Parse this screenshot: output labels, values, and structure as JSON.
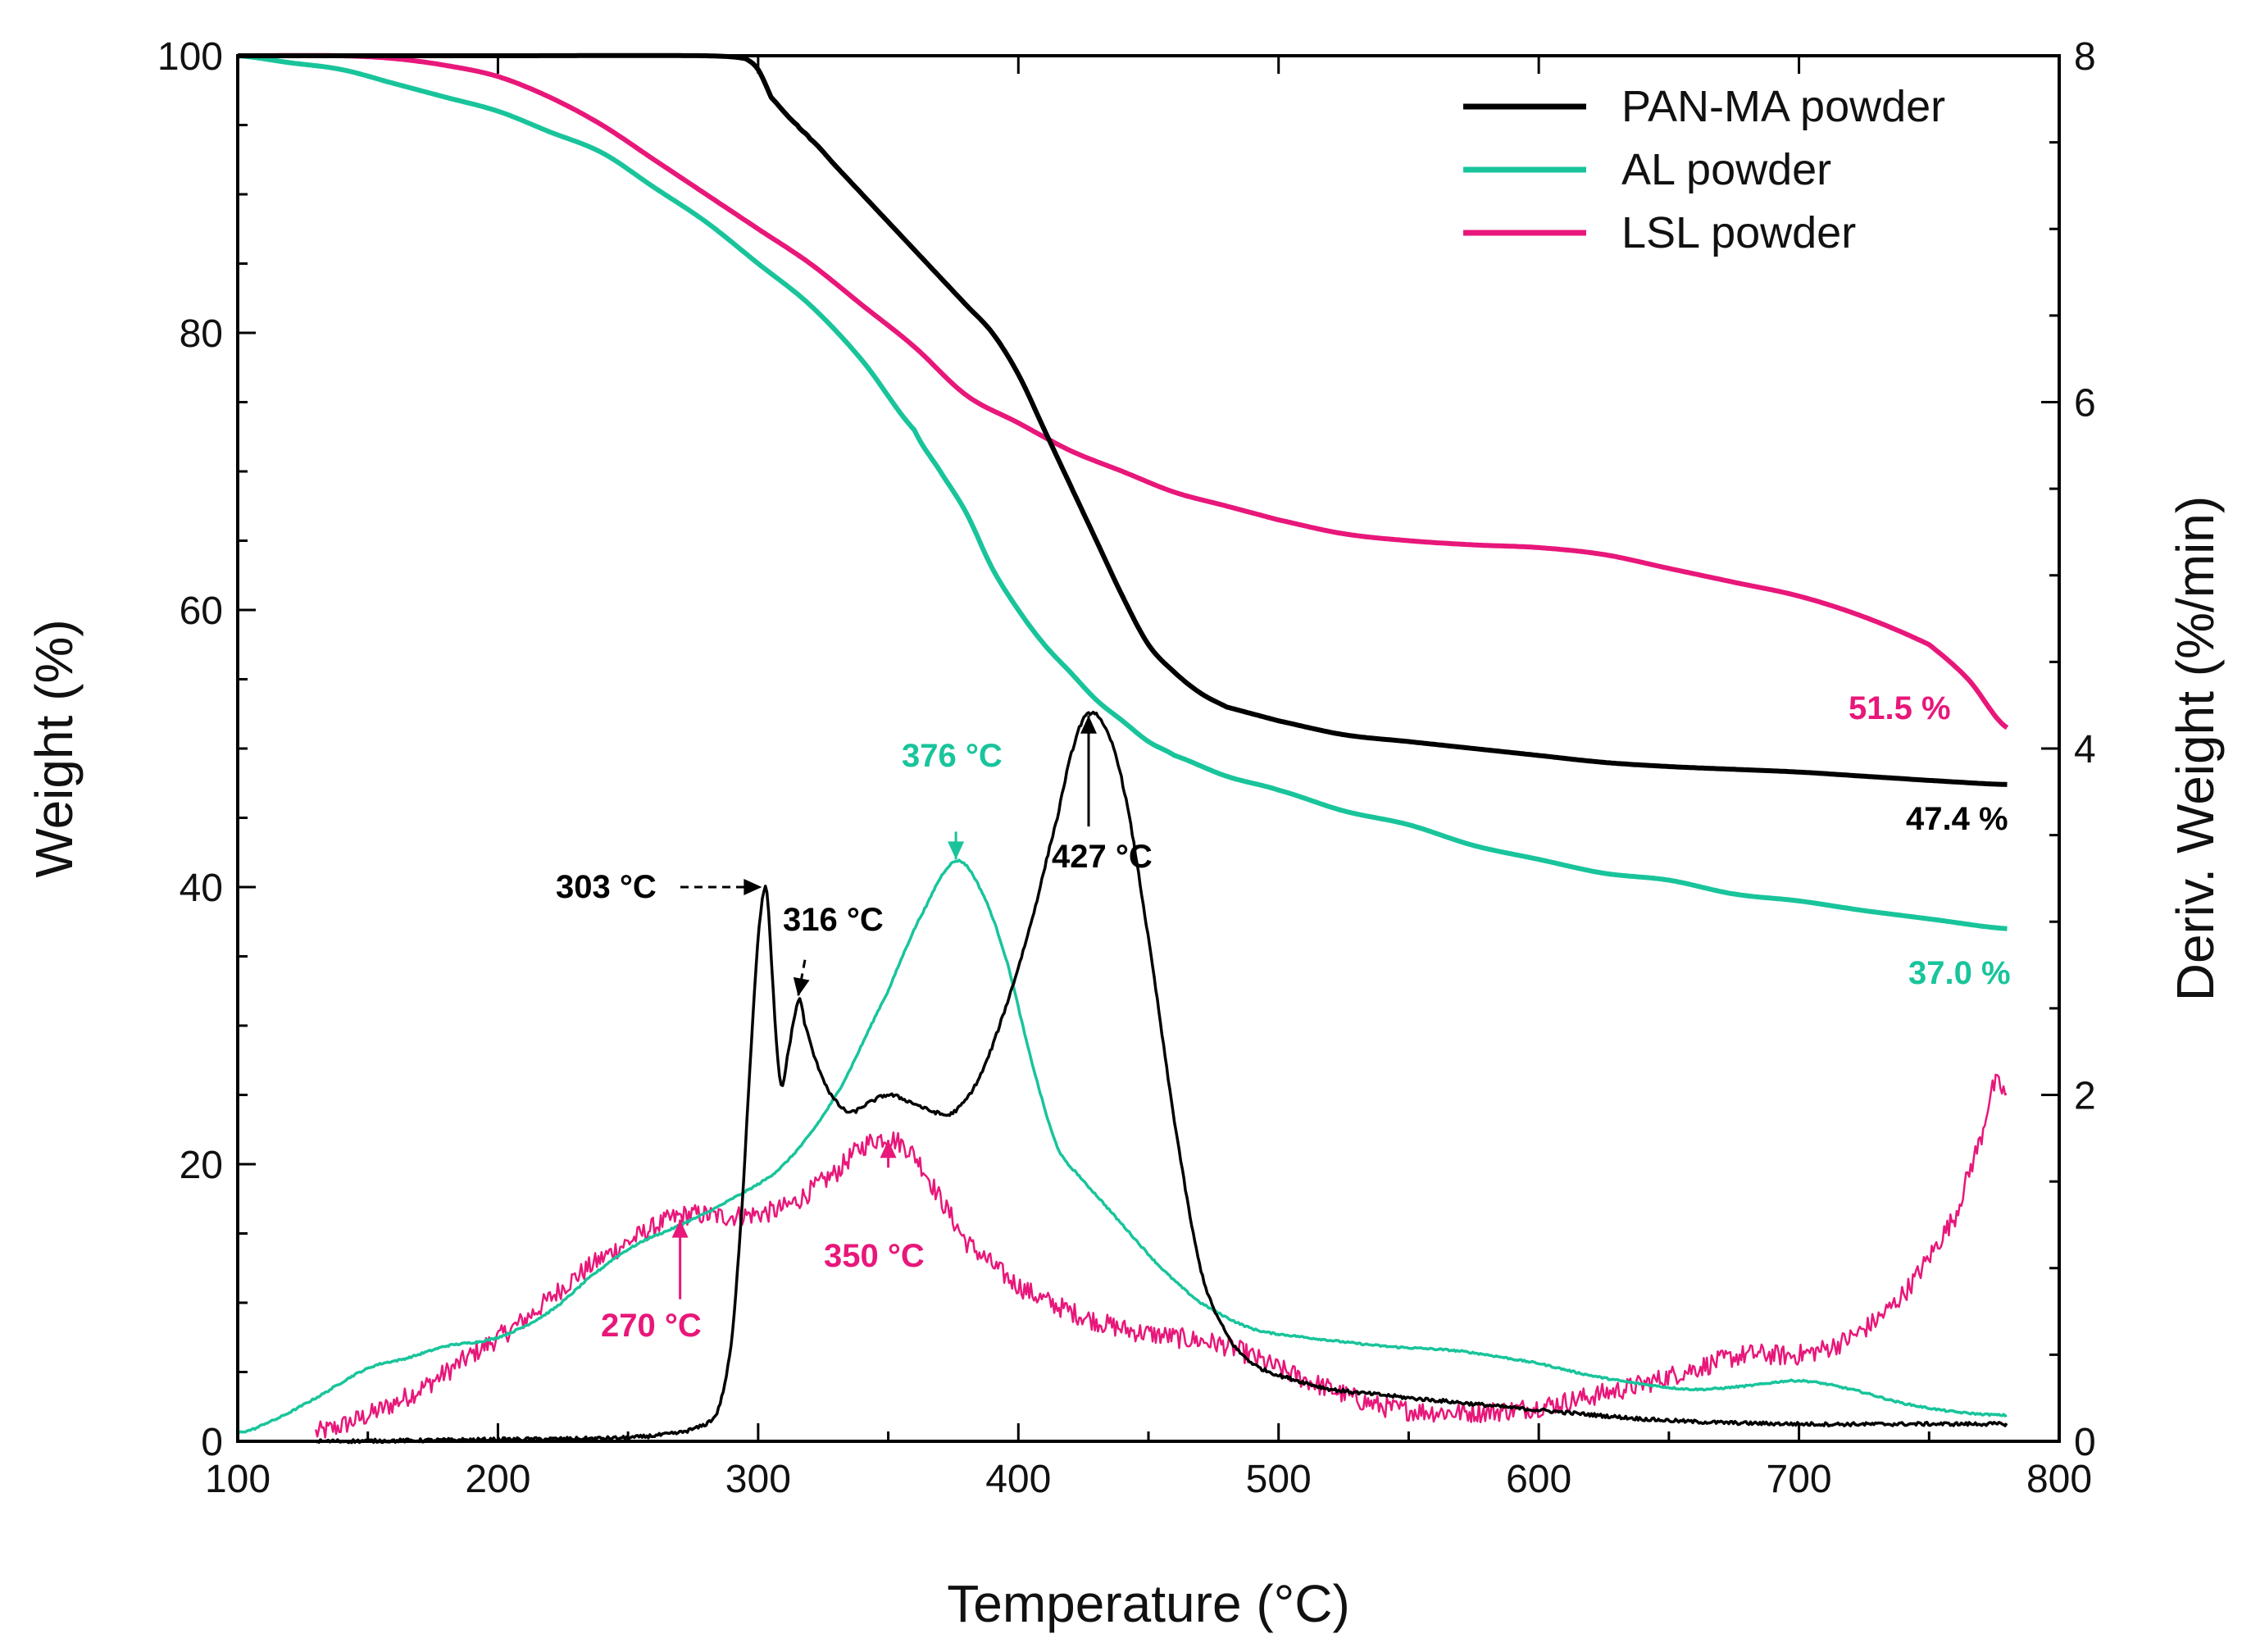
{
  "chart_data": {
    "type": "line",
    "title": "",
    "xlabel": "Temperature (°C)",
    "ylabel": "Weight (%)",
    "y2label": "Deriv. Weight (%/min)",
    "xlim": [
      100,
      800
    ],
    "ylim": [
      0,
      100
    ],
    "y2lim": [
      0,
      8
    ],
    "xticks": [
      100,
      200,
      300,
      400,
      500,
      600,
      700,
      800
    ],
    "yticks": [
      0,
      20,
      40,
      60,
      80,
      100
    ],
    "y2ticks": [
      0,
      2,
      4,
      6,
      8
    ],
    "legend_position": "top-right",
    "series": [
      {
        "name": "PAN-MA powder",
        "color": "#000000",
        "axis": "left",
        "points": [
          [
            100,
            100
          ],
          [
            200,
            100
          ],
          [
            280,
            100
          ],
          [
            295,
            99.8
          ],
          [
            300,
            99
          ],
          [
            305,
            97
          ],
          [
            315,
            95
          ],
          [
            320,
            94
          ],
          [
            330,
            92
          ],
          [
            340,
            90
          ],
          [
            350,
            88
          ],
          [
            360,
            86
          ],
          [
            370,
            84
          ],
          [
            380,
            82
          ],
          [
            390,
            80
          ],
          [
            400,
            77
          ],
          [
            410,
            73
          ],
          [
            420,
            69
          ],
          [
            430,
            65
          ],
          [
            440,
            61
          ],
          [
            450,
            57.5
          ],
          [
            460,
            55.5
          ],
          [
            470,
            54
          ],
          [
            480,
            53
          ],
          [
            500,
            52
          ],
          [
            525,
            51
          ],
          [
            550,
            50.5
          ],
          [
            575,
            50
          ],
          [
            600,
            49.5
          ],
          [
            625,
            49
          ],
          [
            650,
            48.7
          ],
          [
            675,
            48.5
          ],
          [
            700,
            48.3
          ],
          [
            725,
            48
          ],
          [
            750,
            47.7
          ],
          [
            780,
            47.4
          ]
        ]
      },
      {
        "name": "AL powder",
        "color": "#19c49b",
        "axis": "left",
        "points": [
          [
            100,
            100
          ],
          [
            120,
            99.5
          ],
          [
            140,
            99
          ],
          [
            160,
            98
          ],
          [
            180,
            97
          ],
          [
            200,
            96
          ],
          [
            220,
            94.5
          ],
          [
            240,
            93
          ],
          [
            260,
            90.5
          ],
          [
            280,
            88
          ],
          [
            300,
            85
          ],
          [
            320,
            82
          ],
          [
            340,
            78
          ],
          [
            360,
            73
          ],
          [
            370,
            70
          ],
          [
            380,
            67
          ],
          [
            390,
            63
          ],
          [
            400,
            60
          ],
          [
            410,
            57.5
          ],
          [
            420,
            55.5
          ],
          [
            430,
            53.5
          ],
          [
            440,
            52
          ],
          [
            450,
            50.5
          ],
          [
            460,
            49.5
          ],
          [
            480,
            48
          ],
          [
            500,
            47
          ],
          [
            525,
            45.5
          ],
          [
            550,
            44.5
          ],
          [
            575,
            43
          ],
          [
            600,
            42
          ],
          [
            625,
            41
          ],
          [
            650,
            40.5
          ],
          [
            675,
            39.5
          ],
          [
            700,
            39
          ],
          [
            725,
            38.3
          ],
          [
            750,
            37.7
          ],
          [
            780,
            37
          ]
        ]
      },
      {
        "name": "LSL powder",
        "color": "#e8177a",
        "axis": "left",
        "points": [
          [
            100,
            100
          ],
          [
            140,
            100
          ],
          [
            160,
            99.8
          ],
          [
            180,
            99.3
          ],
          [
            200,
            98.5
          ],
          [
            220,
            97
          ],
          [
            240,
            95
          ],
          [
            260,
            92.5
          ],
          [
            280,
            90
          ],
          [
            300,
            87.5
          ],
          [
            320,
            85
          ],
          [
            340,
            82
          ],
          [
            360,
            79
          ],
          [
            380,
            75.5
          ],
          [
            400,
            73.5
          ],
          [
            420,
            71.5
          ],
          [
            440,
            70
          ],
          [
            460,
            68.5
          ],
          [
            480,
            67.5
          ],
          [
            500,
            66.5
          ],
          [
            525,
            65.5
          ],
          [
            550,
            65
          ],
          [
            575,
            64.7
          ],
          [
            600,
            64.5
          ],
          [
            625,
            64
          ],
          [
            650,
            63
          ],
          [
            675,
            62
          ],
          [
            700,
            61
          ],
          [
            725,
            59.5
          ],
          [
            750,
            57.5
          ],
          [
            765,
            55
          ],
          [
            780,
            51.5
          ]
        ]
      },
      {
        "name": "PAN-MA powder DTG",
        "color": "#000000",
        "axis": "right",
        "noise": 0.01,
        "points": [
          [
            130,
            0
          ],
          [
            200,
            0.01
          ],
          [
            250,
            0.02
          ],
          [
            270,
            0.05
          ],
          [
            280,
            0.1
          ],
          [
            285,
            0.2
          ],
          [
            290,
            0.6
          ],
          [
            294,
            1.4
          ],
          [
            297,
            2.2
          ],
          [
            300,
            2.9
          ],
          [
            303,
            3.2
          ],
          [
            305,
            2.8
          ],
          [
            307,
            2.3
          ],
          [
            309,
            2.05
          ],
          [
            311,
            2.2
          ],
          [
            314,
            2.45
          ],
          [
            316,
            2.55
          ],
          [
            318,
            2.4
          ],
          [
            322,
            2.2
          ],
          [
            328,
            2.0
          ],
          [
            335,
            1.9
          ],
          [
            342,
            1.95
          ],
          [
            350,
            2.0
          ],
          [
            360,
            1.95
          ],
          [
            368,
            1.9
          ],
          [
            375,
            1.9
          ],
          [
            385,
            2.1
          ],
          [
            395,
            2.5
          ],
          [
            405,
            3.0
          ],
          [
            415,
            3.6
          ],
          [
            422,
            4.05
          ],
          [
            427,
            4.2
          ],
          [
            432,
            4.15
          ],
          [
            440,
            3.8
          ],
          [
            450,
            2.9
          ],
          [
            460,
            1.85
          ],
          [
            470,
            1.0
          ],
          [
            480,
            0.62
          ],
          [
            490,
            0.45
          ],
          [
            500,
            0.38
          ],
          [
            520,
            0.3
          ],
          [
            550,
            0.25
          ],
          [
            600,
            0.18
          ],
          [
            650,
            0.12
          ],
          [
            700,
            0.1
          ],
          [
            750,
            0.1
          ],
          [
            780,
            0.1
          ]
        ]
      },
      {
        "name": "AL powder DTG",
        "color": "#19c49b",
        "axis": "right",
        "noise": 0.005,
        "points": [
          [
            100,
            0.05
          ],
          [
            110,
            0.1
          ],
          [
            130,
            0.25
          ],
          [
            150,
            0.42
          ],
          [
            165,
            0.48
          ],
          [
            180,
            0.55
          ],
          [
            200,
            0.6
          ],
          [
            220,
            0.75
          ],
          [
            240,
            1.0
          ],
          [
            255,
            1.15
          ],
          [
            270,
            1.25
          ],
          [
            290,
            1.4
          ],
          [
            310,
            1.6
          ],
          [
            330,
            2.0
          ],
          [
            350,
            2.6
          ],
          [
            365,
            3.1
          ],
          [
            376,
            3.35
          ],
          [
            385,
            3.2
          ],
          [
            395,
            2.8
          ],
          [
            405,
            2.2
          ],
          [
            415,
            1.7
          ],
          [
            425,
            1.5
          ],
          [
            440,
            1.25
          ],
          [
            455,
            1.0
          ],
          [
            470,
            0.8
          ],
          [
            490,
            0.65
          ],
          [
            510,
            0.6
          ],
          [
            540,
            0.55
          ],
          [
            570,
            0.52
          ],
          [
            600,
            0.45
          ],
          [
            620,
            0.38
          ],
          [
            640,
            0.33
          ],
          [
            660,
            0.3
          ],
          [
            680,
            0.32
          ],
          [
            700,
            0.35
          ],
          [
            720,
            0.3
          ],
          [
            740,
            0.22
          ],
          [
            760,
            0.17
          ],
          [
            780,
            0.15
          ]
        ]
      },
      {
        "name": "LSL powder DTG",
        "color": "#e8177a",
        "axis": "right",
        "noise": 0.06,
        "points": [
          [
            130,
            0.05
          ],
          [
            150,
            0.15
          ],
          [
            170,
            0.3
          ],
          [
            190,
            0.5
          ],
          [
            210,
            0.7
          ],
          [
            230,
            0.95
          ],
          [
            250,
            1.15
          ],
          [
            270,
            1.3
          ],
          [
            290,
            1.3
          ],
          [
            310,
            1.35
          ],
          [
            330,
            1.55
          ],
          [
            340,
            1.7
          ],
          [
            350,
            1.75
          ],
          [
            360,
            1.65
          ],
          [
            370,
            1.4
          ],
          [
            380,
            1.15
          ],
          [
            400,
            0.9
          ],
          [
            420,
            0.75
          ],
          [
            440,
            0.65
          ],
          [
            460,
            0.6
          ],
          [
            480,
            0.55
          ],
          [
            500,
            0.42
          ],
          [
            520,
            0.3
          ],
          [
            540,
            0.2
          ],
          [
            560,
            0.17
          ],
          [
            580,
            0.17
          ],
          [
            600,
            0.2
          ],
          [
            620,
            0.26
          ],
          [
            640,
            0.33
          ],
          [
            660,
            0.42
          ],
          [
            680,
            0.5
          ],
          [
            700,
            0.5
          ],
          [
            720,
            0.6
          ],
          [
            740,
            0.85
          ],
          [
            760,
            1.3
          ],
          [
            770,
            1.75
          ],
          [
            775,
            2.05
          ],
          [
            780,
            2.0
          ]
        ]
      }
    ],
    "annotations": [
      {
        "text": "303 °C",
        "color": "#000000"
      },
      {
        "text": "316 °C",
        "color": "#000000"
      },
      {
        "text": "427 °C",
        "color": "#000000"
      },
      {
        "text": "376 °C",
        "color": "#19c49b"
      },
      {
        "text": "270 °C",
        "color": "#e8177a"
      },
      {
        "text": "350 °C",
        "color": "#e8177a"
      },
      {
        "text": "51.5 %",
        "color": "#e8177a"
      },
      {
        "text": "47.4 %",
        "color": "#000000"
      },
      {
        "text": "37.0 %",
        "color": "#19c49b"
      }
    ]
  }
}
